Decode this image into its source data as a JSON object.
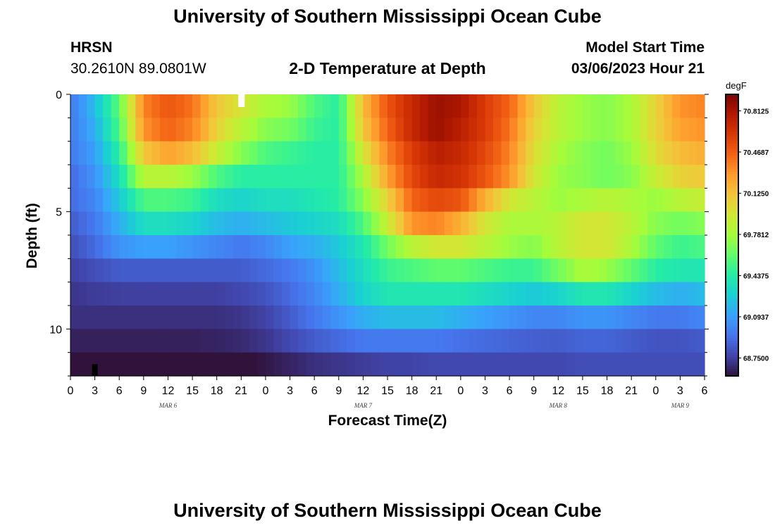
{
  "header": {
    "title": "University of Southern Mississippi Ocean Cube",
    "station": "HRSN",
    "location": "30.2610N  89.0801W",
    "subtitle": "2-D Temperature at Depth",
    "model_start_label": "Model Start Time",
    "model_start_value": "03/06/2023 Hour 21",
    "footer_title": "University of Southern Mississippi Ocean Cube"
  },
  "chart_data": {
    "type": "heatmap",
    "title": "2-D Temperature at Depth",
    "xlabel": "Forecast Time(Z)",
    "ylabel": "Depth (ft)",
    "x_range_hours": [
      0,
      78
    ],
    "y_range_ft": [
      0,
      12
    ],
    "y_reversed": true,
    "y_major_ticks": [
      0,
      5,
      10
    ],
    "x_tick_labels": [
      "0",
      "3",
      "6",
      "9",
      "12",
      "15",
      "18",
      "21",
      "0",
      "3",
      "6",
      "9",
      "12",
      "15",
      "18",
      "21",
      "0",
      "3",
      "6",
      "9",
      "12",
      "15",
      "18",
      "21",
      "0",
      "3",
      "6"
    ],
    "day_labels": [
      {
        "label": "MAR 6",
        "hour": 12
      },
      {
        "label": "MAR 7",
        "hour": 36
      },
      {
        "label": "MAR 8",
        "hour": 60
      },
      {
        "label": "MAR 9",
        "hour": 75
      }
    ],
    "colorbar": {
      "unit": "degF",
      "min": 68.6,
      "max": 70.95,
      "tick_values": [
        70.8125,
        70.4687,
        70.125,
        69.7812,
        69.4375,
        69.0937,
        68.75
      ],
      "tick_labels": [
        "70.8125",
        "70.4687",
        "70.1250",
        "69.7812",
        "69.4375",
        "69.0937",
        "68.7500"
      ],
      "colors": [
        "#30123b",
        "#4145ab",
        "#4675ed",
        "#39a2fc",
        "#1bcfd4",
        "#24eca6",
        "#61fc6c",
        "#a4fc3b",
        "#d1e834",
        "#f3c63a",
        "#fe9b2d",
        "#f36315",
        "#d93806",
        "#b11901",
        "#7a0402"
      ]
    },
    "depth_layers_ft": [
      0.5,
      1.5,
      2.5,
      3.5,
      4.5,
      5.5,
      6.5,
      7.5,
      8.5,
      9.5,
      10.5,
      11.5
    ],
    "time_nodes_hours": [
      0,
      3,
      6,
      9,
      12,
      15,
      18,
      21,
      24,
      27,
      30,
      33,
      36,
      39,
      42,
      45,
      48,
      51,
      54,
      57,
      60,
      63,
      66,
      69,
      72,
      75,
      78
    ],
    "temperature_degF": [
      [
        68.95,
        69.2,
        69.6,
        70.35,
        70.5,
        70.4,
        70.1,
        69.95,
        69.8,
        69.75,
        69.55,
        69.45,
        70.15,
        70.5,
        70.7,
        70.85,
        70.8,
        70.6,
        70.45,
        70.1,
        69.85,
        69.75,
        69.7,
        69.8,
        70.05,
        70.3,
        70.35
      ],
      [
        68.95,
        69.15,
        69.55,
        70.3,
        70.45,
        70.35,
        70.05,
        69.85,
        69.7,
        69.65,
        69.5,
        69.45,
        70.1,
        70.45,
        70.7,
        70.85,
        70.75,
        70.6,
        70.4,
        70.05,
        69.85,
        69.75,
        69.7,
        69.8,
        70.05,
        70.25,
        70.3
      ],
      [
        68.95,
        69.1,
        69.45,
        70.1,
        70.25,
        70.15,
        69.9,
        69.7,
        69.55,
        69.5,
        69.45,
        69.45,
        69.95,
        70.35,
        70.6,
        70.75,
        70.7,
        70.55,
        70.35,
        70.0,
        69.8,
        69.7,
        69.65,
        69.75,
        70.0,
        70.15,
        70.2
      ],
      [
        68.9,
        69.05,
        69.35,
        69.85,
        69.85,
        69.75,
        69.55,
        69.45,
        69.45,
        69.45,
        69.45,
        69.45,
        69.8,
        70.25,
        70.55,
        70.7,
        70.65,
        70.5,
        70.3,
        69.95,
        69.75,
        69.7,
        69.65,
        69.7,
        69.9,
        70.05,
        70.1
      ],
      [
        68.9,
        69.0,
        69.25,
        69.55,
        69.55,
        69.5,
        69.35,
        69.3,
        69.35,
        69.35,
        69.4,
        69.45,
        69.7,
        70.05,
        70.45,
        70.55,
        70.5,
        70.2,
        69.95,
        69.85,
        69.75,
        69.8,
        69.85,
        69.8,
        69.75,
        69.85,
        69.9
      ],
      [
        68.85,
        68.95,
        69.15,
        69.35,
        69.35,
        69.3,
        69.2,
        69.15,
        69.2,
        69.25,
        69.3,
        69.35,
        69.55,
        69.9,
        70.3,
        70.35,
        70.2,
        69.95,
        69.8,
        69.8,
        69.85,
        69.95,
        69.95,
        69.85,
        69.7,
        69.65,
        69.7
      ],
      [
        68.8,
        68.9,
        69.05,
        69.1,
        69.1,
        69.05,
        69.0,
        68.95,
        69.0,
        69.1,
        69.15,
        69.25,
        69.4,
        69.65,
        69.85,
        69.95,
        69.95,
        69.85,
        69.75,
        69.7,
        69.85,
        69.95,
        69.95,
        69.8,
        69.6,
        69.5,
        69.55
      ],
      [
        68.75,
        68.8,
        68.85,
        68.85,
        68.85,
        68.85,
        68.85,
        68.85,
        68.9,
        68.95,
        69.05,
        69.2,
        69.35,
        69.5,
        69.55,
        69.6,
        69.6,
        69.55,
        69.5,
        69.5,
        69.65,
        69.8,
        69.75,
        69.6,
        69.45,
        69.4,
        69.4
      ],
      [
        68.72,
        68.74,
        68.75,
        68.75,
        68.75,
        68.75,
        68.75,
        68.78,
        68.82,
        68.9,
        69.0,
        69.15,
        69.3,
        69.4,
        69.4,
        69.4,
        69.4,
        69.35,
        69.3,
        69.25,
        69.3,
        69.4,
        69.4,
        69.3,
        69.2,
        69.15,
        69.2
      ],
      [
        68.7,
        68.7,
        68.7,
        68.7,
        68.7,
        68.7,
        68.7,
        68.72,
        68.76,
        68.85,
        68.95,
        69.05,
        69.15,
        69.2,
        69.2,
        69.2,
        69.15,
        69.1,
        69.05,
        69.0,
        69.0,
        69.05,
        69.05,
        69.0,
        68.95,
        68.95,
        69.0
      ],
      [
        68.65,
        68.65,
        68.65,
        68.65,
        68.65,
        68.65,
        68.66,
        68.68,
        68.72,
        68.78,
        68.85,
        68.9,
        68.95,
        68.95,
        68.95,
        68.95,
        68.92,
        68.9,
        68.88,
        68.86,
        68.85,
        68.88,
        68.88,
        68.85,
        68.82,
        68.82,
        68.85
      ],
      [
        68.6,
        68.6,
        68.58,
        68.56,
        68.55,
        68.55,
        68.56,
        68.58,
        68.62,
        68.66,
        68.7,
        68.72,
        68.74,
        68.76,
        68.76,
        68.78,
        68.78,
        68.78,
        68.78,
        68.78,
        68.78,
        68.8,
        68.8,
        68.8,
        68.8,
        68.8,
        68.8
      ]
    ]
  }
}
